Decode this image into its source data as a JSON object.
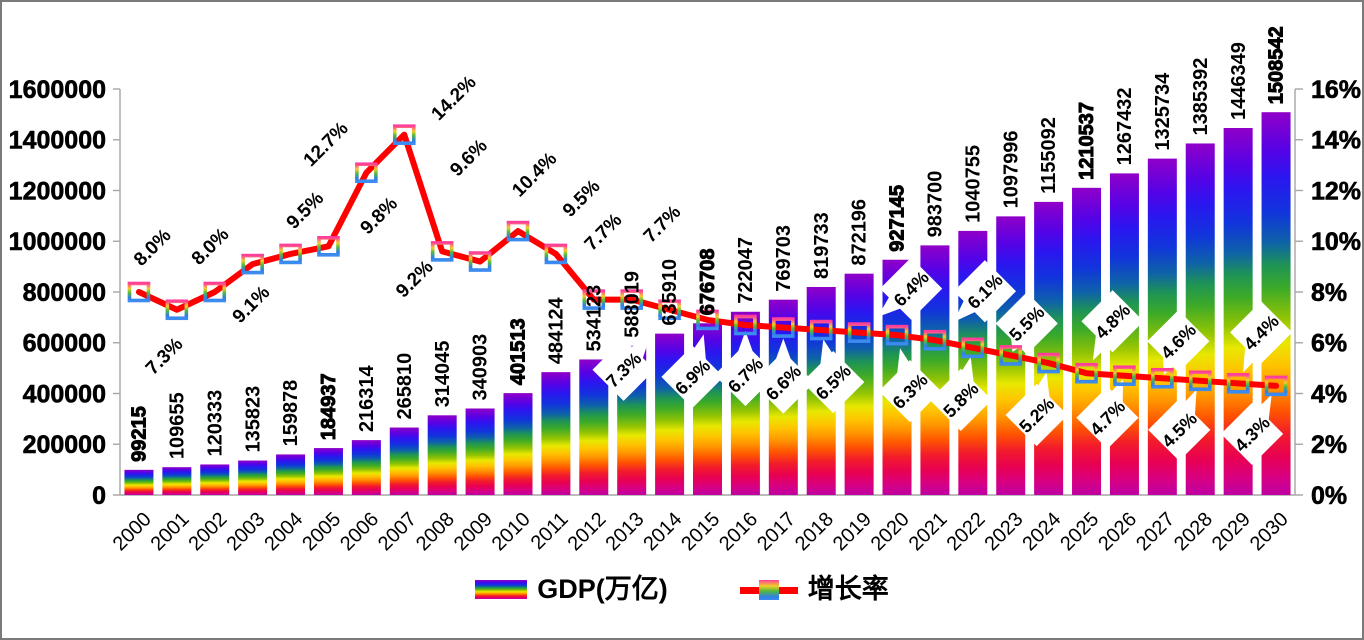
{
  "chart_data": {
    "type": "bar+line",
    "title": "",
    "categories": [
      "2000",
      "2001",
      "2002",
      "2003",
      "2004",
      "2005",
      "2006",
      "2007",
      "2008",
      "2009",
      "2010",
      "2011",
      "2012",
      "2013",
      "2014",
      "2015",
      "2016",
      "2017",
      "2018",
      "2019",
      "2020",
      "2021",
      "2022",
      "2023",
      "2024",
      "2025",
      "2026",
      "2027",
      "2028",
      "2029",
      "2030"
    ],
    "series": [
      {
        "name": "GDP(万亿)",
        "type": "bar",
        "axis": "left",
        "values": [
          99215,
          109655,
          120333,
          135823,
          159878,
          184937,
          216314,
          265810,
          314045,
          340903,
          401513,
          484124,
          534123,
          588019,
          635910,
          676708,
          722047,
          769703,
          819733,
          872196,
          927145,
          983700,
          1040755,
          1097996,
          1155092,
          1210537,
          1267432,
          1325734,
          1385392,
          1446349,
          1508542
        ]
      },
      {
        "name": "增长率",
        "type": "line",
        "axis": "right",
        "unit": "%",
        "values": [
          8.0,
          7.3,
          8.0,
          9.1,
          9.5,
          9.8,
          12.7,
          14.2,
          9.6,
          9.2,
          10.4,
          9.5,
          7.7,
          7.7,
          7.3,
          6.9,
          6.7,
          6.6,
          6.5,
          6.4,
          6.3,
          6.1,
          5.8,
          5.5,
          5.2,
          4.8,
          4.7,
          4.6,
          4.5,
          4.4,
          4.3
        ]
      }
    ],
    "growth_point_labels": [
      "8.0%",
      "7.3%",
      "8.0%",
      "9.1%",
      "9.5%",
      "9.8%",
      "12.7%",
      "14.2%",
      "9.6%",
      "9.2%",
      "10.4%",
      "9.5%",
      "7.7%",
      "7.7%",
      "7.3%",
      "6.9%",
      "6.7%",
      "6.6%",
      "6.5%",
      "6.4%",
      "6.3%",
      "6.1%",
      "5.8%",
      "5.5%",
      "5.2%",
      "4.8%",
      "4.7%",
      "4.6%",
      "4.5%",
      "4.4%",
      "4.3%"
    ],
    "growth_label_side": [
      "above",
      "below",
      "above",
      "below",
      "above",
      "above",
      "above",
      "above",
      "above",
      "below",
      "above",
      "above",
      "above",
      "above",
      "below",
      "below",
      "below",
      "below",
      "below",
      "above",
      "below",
      "above",
      "below",
      "above",
      "below",
      "above",
      "below",
      "above",
      "below",
      "above",
      "below"
    ],
    "first_callout_year": 2014,
    "bold_value_years": [
      2000,
      2005,
      2010,
      2015,
      2020,
      2025,
      2030
    ],
    "left_axis": {
      "min": 0,
      "max": 1600000,
      "step": 200000,
      "tick_labels": [
        "0",
        "200000",
        "400000",
        "600000",
        "800000",
        "1000000",
        "1200000",
        "1400000",
        "1600000"
      ]
    },
    "right_axis": {
      "min": 0,
      "max": 16,
      "step": 2,
      "tick_labels": [
        "0%",
        "2%",
        "4%",
        "6%",
        "8%",
        "10%",
        "12%",
        "14%",
        "16%"
      ]
    },
    "grid": "none",
    "legend": {
      "position": "bottom",
      "items": [
        {
          "label": "GDP(万亿)",
          "swatch": "rainbow-gradient-bar"
        },
        {
          "label": "增长率",
          "swatch": "red-line-square-marker"
        }
      ]
    },
    "colors": {
      "line": "#FF0000",
      "axis_line": "#A6A6A6",
      "text": "#000000",
      "background": "#FFFFFF",
      "bar_gradient": [
        [
          0.0,
          "#9000C8"
        ],
        [
          0.1,
          "#5502E6"
        ],
        [
          0.17,
          "#2B16F0"
        ],
        [
          0.26,
          "#1134DC"
        ],
        [
          0.34,
          "#0E62A8"
        ],
        [
          0.4,
          "#1E9455"
        ],
        [
          0.46,
          "#3CAA28"
        ],
        [
          0.54,
          "#93C403"
        ],
        [
          0.6,
          "#E8E800"
        ],
        [
          0.66,
          "#FFC400"
        ],
        [
          0.72,
          "#FF9500"
        ],
        [
          0.78,
          "#FF5500"
        ],
        [
          0.84,
          "#F21B2B"
        ],
        [
          0.9,
          "#E80052"
        ],
        [
          0.95,
          "#D9007F"
        ],
        [
          1.0,
          "#BE00A3"
        ]
      ],
      "marker_gradient": [
        [
          0.0,
          "#FF3E9B"
        ],
        [
          0.3,
          "#F2CE2A"
        ],
        [
          0.55,
          "#55B93C"
        ],
        [
          0.85,
          "#2F7FE8"
        ],
        [
          1.0,
          "#3C8CF0"
        ]
      ]
    }
  }
}
